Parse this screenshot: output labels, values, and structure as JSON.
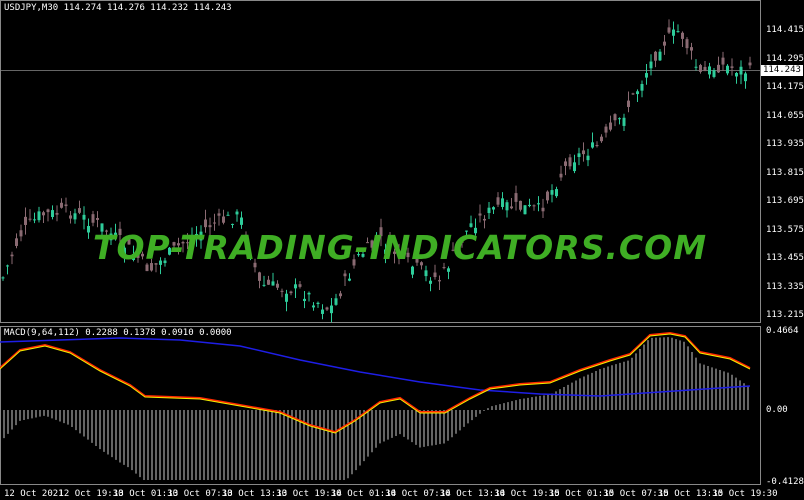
{
  "header": {
    "title": "USDJPY,M30  114.274 114.276 114.232 114.243"
  },
  "price_axis": {
    "ticks": [
      "114.415",
      "114.295",
      "114.175",
      "114.055",
      "113.935",
      "113.815",
      "113.695",
      "113.575",
      "113.455",
      "113.335",
      "113.215"
    ],
    "current": "114.243"
  },
  "watermark": "TOP-TRADING-INDICATORS.COM",
  "macd": {
    "title": "MACD(9,64,112) 0.2288 0.1378 0.0910 0.0000",
    "ticks": [
      "0.4664",
      "0.00",
      "-0.4128"
    ]
  },
  "time_axis": [
    "12 Oct 2021",
    "12 Oct 19:30",
    "13 Oct 01:30",
    "13 Oct 07:30",
    "13 Oct 13:30",
    "13 Oct 19:30",
    "14 Oct 01:30",
    "14 Oct 07:30",
    "14 Oct 13:30",
    "14 Oct 19:30",
    "15 Oct 01:30",
    "15 Oct 07:30",
    "15 Oct 13:30",
    "15 Oct 19:30"
  ],
  "colors": {
    "up": "#2ecc9a",
    "down": "#8a6a72",
    "signal": "#1e1ee6",
    "macd_line": "#ff2a00",
    "main": "#f0f000",
    "hist": "#c8c8c8"
  }
}
